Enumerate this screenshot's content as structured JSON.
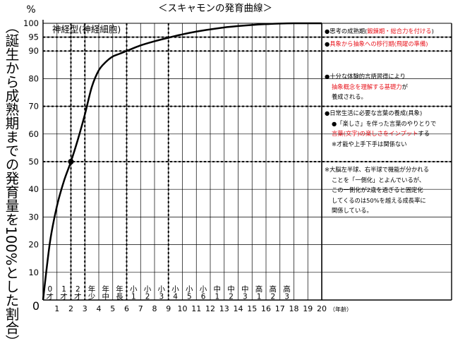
{
  "chart_data": {
    "type": "line",
    "title": "＜スキャモンの発育曲線＞",
    "ylabel": "（誕生から成熟期までの発育量を100%とした割合）",
    "y_unit": "%",
    "xlabel": "（年齢）",
    "xlim": [
      0,
      20
    ],
    "ylim": [
      0,
      100
    ],
    "grid": true,
    "x_ticks": [
      "0",
      "1",
      "2",
      "3",
      "4",
      "5",
      "6",
      "7",
      "8",
      "9",
      "10",
      "11",
      "12",
      "13",
      "14",
      "15",
      "16",
      "17",
      "18",
      "19",
      "20"
    ],
    "y_ticks": [
      "0",
      "10",
      "20",
      "30",
      "40",
      "50",
      "60",
      "70",
      "80",
      "90",
      "95",
      "100"
    ],
    "stage_labels": [
      {
        "x": 0,
        "text": "0才"
      },
      {
        "x": 1,
        "text": "1才"
      },
      {
        "x": 2,
        "text": "2才"
      },
      {
        "x": 3,
        "text": "年少"
      },
      {
        "x": 4,
        "text": "年中"
      },
      {
        "x": 5,
        "text": "年長"
      },
      {
        "x": 6,
        "text": "小1"
      },
      {
        "x": 7,
        "text": "小2"
      },
      {
        "x": 8,
        "text": "小3"
      },
      {
        "x": 9,
        "text": "小4"
      },
      {
        "x": 10,
        "text": "小5"
      },
      {
        "x": 11,
        "text": "小6"
      },
      {
        "x": 12,
        "text": "中1"
      },
      {
        "x": 13,
        "text": "中2"
      },
      {
        "x": 14,
        "text": "中3"
      },
      {
        "x": 15,
        "text": "高1"
      },
      {
        "x": 16,
        "text": "高2"
      },
      {
        "x": 17,
        "text": "高3"
      }
    ],
    "series": [
      {
        "name": "神経型(神経細胞)",
        "x": [
          0,
          0.5,
          1,
          1.5,
          2,
          2.5,
          3,
          3.5,
          4,
          4.5,
          5,
          5.5,
          6,
          7,
          8,
          9,
          10,
          11,
          12,
          13,
          14,
          15,
          16,
          17,
          18,
          19,
          20
        ],
        "y": [
          0,
          21,
          34,
          43,
          50,
          58,
          67,
          77,
          83,
          86,
          88,
          89,
          90,
          92,
          93.5,
          94.8,
          96,
          97,
          97.8,
          98.5,
          99,
          99.4,
          99.7,
          99.9,
          100,
          100,
          100
        ],
        "color": "#000000"
      }
    ],
    "marker": {
      "x": 2,
      "y": 50
    },
    "dashed_guides": [
      {
        "type": "h",
        "y": 95
      },
      {
        "type": "h",
        "y": 90
      },
      {
        "type": "h",
        "y": 70
      },
      {
        "type": "h",
        "y": 50
      },
      {
        "type": "v",
        "x": 2
      },
      {
        "type": "v",
        "x": 3
      },
      {
        "type": "v",
        "x": 6
      },
      {
        "type": "v",
        "x": 9
      }
    ]
  },
  "notes": [
    {
      "bullet": "●",
      "lines": [
        [
          {
            "text": "思考の成熟期("
          },
          {
            "text": "鍛錬期・総合力を付ける",
            "red": true
          },
          {
            "text": ")"
          }
        ]
      ]
    },
    {
      "bullet": "●",
      "lines": [
        [
          {
            "text": "具象から抽象への移行期(飛躍の準備)",
            "red": true
          }
        ]
      ]
    },
    {
      "bullet": "●",
      "lines": [
        [
          {
            "text": "十分な体験的言語習得により"
          }
        ],
        [
          {
            "text": "抽象概念を理解する基礎力",
            "red": true
          },
          {
            "text": "が"
          }
        ],
        [
          {
            "text": "養成される。"
          }
        ]
      ]
    },
    {
      "bullet": "●",
      "lines": [
        [
          {
            "text": "日常生活に必要な言葉の養成(具象)"
          }
        ],
        [
          {
            "text": "●「楽しさ」を伴った言葉のやりとりで"
          }
        ],
        [
          {
            "text": "言葉(文字)の楽しさをインプット",
            "red": true
          },
          {
            "text": "する"
          }
        ],
        [
          {
            "text": "※才能や上手下手は関係ない"
          }
        ]
      ]
    },
    {
      "bullet": "※",
      "lines": [
        [
          {
            "text": "大脳左半球、右半球で機能が分かれる"
          }
        ],
        [
          {
            "text": "ことを「一側化」とよんでいるが、"
          }
        ],
        [
          {
            "text": "この一側化が2歳を過ぎると固定化"
          }
        ],
        [
          {
            "text": "してくるのは50%を越える成長率に"
          }
        ],
        [
          {
            "text": "関係している。"
          }
        ]
      ]
    }
  ]
}
